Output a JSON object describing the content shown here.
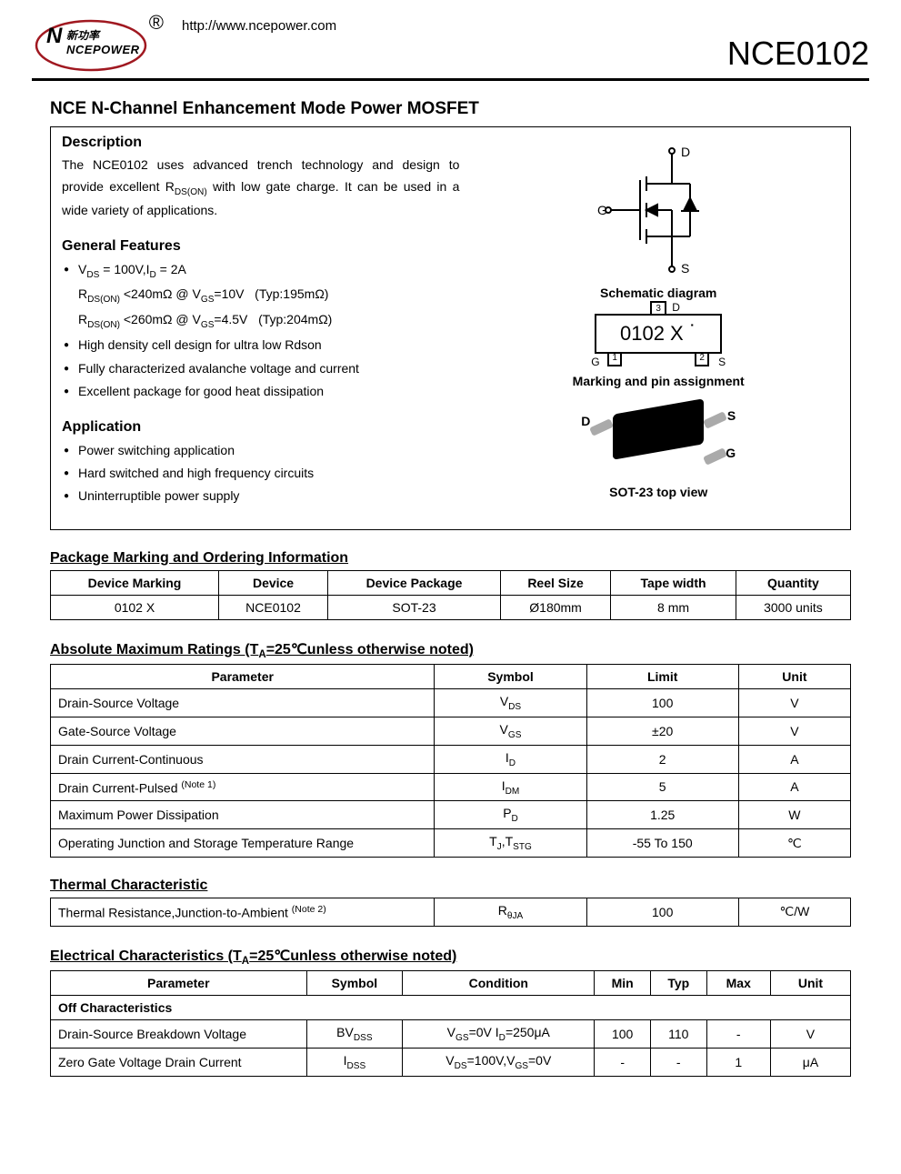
{
  "header": {
    "logo_cn": "新功率",
    "logo_en": "NCEPOWER",
    "trademark": "®",
    "url": "http://www.ncepower.com",
    "part_number": "NCE0102"
  },
  "main_title": "NCE N-Channel Enhancement Mode Power MOSFET",
  "description": {
    "heading": "Description",
    "text_before": "The NCE0102 uses advanced trench technology and design to provide excellent R",
    "text_sub": "DS(ON)",
    "text_after": " with low gate charge. It can be used in a wide variety of applications."
  },
  "features": {
    "heading": "General Features",
    "items": [
      {
        "html": "V<sub>DS</sub> = 100V,I<sub>D</sub> = 2A",
        "bullet": true
      },
      {
        "html": "R<sub>DS(ON)</sub> &lt;240mΩ @ V<sub>GS</sub>=10V&nbsp;&nbsp;&nbsp;(Typ:195mΩ)",
        "bullet": false
      },
      {
        "html": "R<sub>DS(ON)</sub> &lt;260mΩ @ V<sub>GS</sub>=4.5V&nbsp;&nbsp;&nbsp;(Typ:204mΩ)",
        "bullet": false
      },
      {
        "html": "High density cell design for ultra low Rdson",
        "bullet": true
      },
      {
        "html": "Fully characterized avalanche voltage and current",
        "bullet": true
      },
      {
        "html": "Excellent package for good heat dissipation",
        "bullet": true
      }
    ]
  },
  "application": {
    "heading": "Application",
    "items": [
      "Power switching application",
      "Hard switched and high frequency circuits",
      "Uninterruptible power supply"
    ]
  },
  "diagrams": {
    "schematic_label": "Schematic diagram",
    "marking_label": "Marking and pin assignment",
    "sot23_label": "SOT-23 top view",
    "marking_text": "0102 X",
    "pins": {
      "D": "D",
      "G": "G",
      "S": "S"
    },
    "pin_nums": {
      "p1": "1",
      "p2": "2",
      "p3": "3"
    },
    "colors": {
      "stroke": "#000",
      "logo_stroke": "#a01820",
      "pkg_black": "#000",
      "pin_gray": "#aaa"
    }
  },
  "pkg_table": {
    "title": "Package Marking and Ordering Information",
    "headers": [
      "Device Marking",
      "Device",
      "Device Package",
      "Reel Size",
      "Tape width",
      "Quantity"
    ],
    "row": [
      "0102 X",
      "NCE0102",
      "SOT-23",
      "Ø180mm",
      "8 mm",
      "3000 units"
    ]
  },
  "abs_table": {
    "title_html": "Absolute Maximum Ratings (T<sub>A</sub>=25℃unless otherwise noted)",
    "headers": [
      "Parameter",
      "Symbol",
      "Limit",
      "Unit"
    ],
    "col_widths": [
      "48%",
      "19%",
      "19%",
      "14%"
    ],
    "rows": [
      {
        "p": "Drain-Source Voltage",
        "s": "V<sub>DS</sub>",
        "l": "100",
        "u": "V"
      },
      {
        "p": "Gate-Source Voltage",
        "s": "V<sub>GS</sub>",
        "l": "±20",
        "u": "V"
      },
      {
        "p": "Drain Current-Continuous",
        "s": "I<sub>D</sub>",
        "l": "2",
        "u": "A"
      },
      {
        "p": "Drain Current-Pulsed <sup class='note'>(Note 1)</sup>",
        "s": "I<sub>DM</sub>",
        "l": "5",
        "u": "A"
      },
      {
        "p": "Maximum Power Dissipation",
        "s": "P<sub>D</sub>",
        "l": "1.25",
        "u": "W"
      },
      {
        "p": "Operating Junction and Storage Temperature Range",
        "s": "T<sub>J</sub>,T<sub>STG</sub>",
        "l": "-55 To 150",
        "u": "℃"
      }
    ]
  },
  "thermal_table": {
    "title": "Thermal Characteristic",
    "col_widths": [
      "48%",
      "19%",
      "19%",
      "14%"
    ],
    "row": {
      "p": "Thermal Resistance,Junction-to-Ambient <sup class='note'>(Note 2)</sup>",
      "s": "R<sub>θJA</sub>",
      "l": "100",
      "u": "℃/W"
    }
  },
  "elec_table": {
    "title_html": "Electrical Characteristics (T<sub>A</sub>=25℃unless otherwise noted)",
    "headers": [
      "Parameter",
      "Symbol",
      "Condition",
      "Min",
      "Typ",
      "Max",
      "Unit"
    ],
    "col_widths": [
      "32%",
      "12%",
      "24%",
      "7%",
      "7%",
      "8%",
      "10%"
    ],
    "subheading": "Off Characteristics",
    "rows": [
      {
        "p": "Drain-Source Breakdown Voltage",
        "s": "BV<sub>DSS</sub>",
        "c": "V<sub>GS</sub>=0V I<sub>D</sub>=250μA",
        "min": "100",
        "typ": "110",
        "max": "-",
        "u": "V"
      },
      {
        "p": "Zero Gate Voltage Drain Current",
        "s": "I<sub>DSS</sub>",
        "c": "V<sub>DS</sub>=100V,V<sub>GS</sub>=0V",
        "min": "-",
        "typ": "-",
        "max": "1",
        "u": "μA"
      }
    ]
  }
}
